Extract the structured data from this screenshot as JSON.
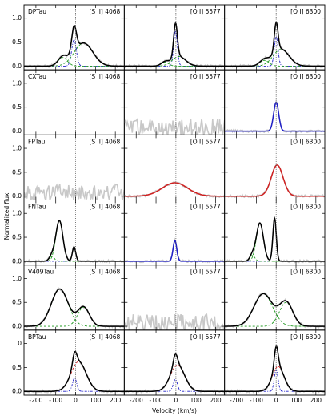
{
  "chart_data": {
    "type": "line",
    "rows": [
      "DPTau",
      "CXTau",
      "FPTau",
      "FNTau",
      "V409Tau",
      "BPTau"
    ],
    "columns": [
      "[S II] 4068",
      "[O I] 5577",
      "[O I] 6300"
    ],
    "xlabel": "Velocity (km/s)",
    "ylabel": "Normalized flux",
    "xlim": [
      -260,
      245
    ],
    "ylim": [
      -0.08,
      1.28
    ],
    "xticks": [
      -200,
      -100,
      0,
      100,
      200
    ],
    "yticks": [
      0.0,
      0.5,
      1.0
    ],
    "vertical_reference_line_x": 0,
    "colors": {
      "observed": "#c8c8c8",
      "total_fit": "#000000",
      "green_component": "#1f9a1f",
      "blue_component": "#2020c8",
      "red_component": "#d02020",
      "reference_line": "#555555"
    },
    "panels": [
      {
        "row": "DPTau",
        "line": "[S II] 4068",
        "has_data": true,
        "fit": "multi",
        "components": [
          {
            "type": "gaussian",
            "center": -8,
            "fwhm": 28,
            "amp": 0.55,
            "color": "blue"
          },
          {
            "type": "gaussian",
            "center": 40,
            "fwhm": 110,
            "amp": 0.48,
            "color": "green"
          },
          {
            "type": "gaussian",
            "center": -65,
            "fwhm": 55,
            "amp": 0.18,
            "color": "green"
          }
        ]
      },
      {
        "row": "DPTau",
        "line": "[O I] 5577",
        "has_data": true,
        "fit": "multi",
        "components": [
          {
            "type": "gaussian",
            "center": -2,
            "fwhm": 22,
            "amp": 0.72,
            "color": "blue"
          },
          {
            "type": "gaussian",
            "center": 15,
            "fwhm": 80,
            "amp": 0.2,
            "color": "green"
          },
          {
            "type": "gaussian",
            "center": -55,
            "fwhm": 45,
            "amp": 0.08,
            "color": "green"
          }
        ]
      },
      {
        "row": "DPTau",
        "line": "[O I] 6300",
        "has_data": true,
        "fit": "multi",
        "components": [
          {
            "type": "gaussian",
            "center": 0,
            "fwhm": 22,
            "amp": 0.62,
            "color": "blue"
          },
          {
            "type": "gaussian",
            "center": 25,
            "fwhm": 95,
            "amp": 0.35,
            "color": "green"
          },
          {
            "type": "gaussian",
            "center": -60,
            "fwhm": 55,
            "amp": 0.12,
            "color": "green"
          }
        ]
      },
      {
        "row": "CXTau",
        "line": "[S II] 4068",
        "has_data": false,
        "fit": "none",
        "components": []
      },
      {
        "row": "CXTau",
        "line": "[O I] 5577",
        "has_data": true,
        "fit": "none",
        "components": []
      },
      {
        "row": "CXTau",
        "line": "[O I] 6300",
        "has_data": true,
        "fit": "single",
        "components": [
          {
            "type": "gaussian",
            "center": 0,
            "fwhm": 30,
            "amp": 0.6,
            "color": "blue"
          }
        ]
      },
      {
        "row": "FPTau",
        "line": "[S II] 4068",
        "has_data": true,
        "fit": "none",
        "components": []
      },
      {
        "row": "FPTau",
        "line": "[O I] 5577",
        "has_data": true,
        "fit": "single",
        "components": [
          {
            "type": "gaussian",
            "center": -5,
            "fwhm": 150,
            "amp": 0.28,
            "color": "red"
          }
        ]
      },
      {
        "row": "FPTau",
        "line": "[O I] 6300",
        "has_data": true,
        "fit": "single",
        "components": [
          {
            "type": "gaussian",
            "center": 5,
            "fwhm": 70,
            "amp": 0.65,
            "color": "red"
          }
        ]
      },
      {
        "row": "FNTau",
        "line": "[S II] 4068",
        "has_data": true,
        "fit": "multi",
        "components": [
          {
            "type": "gaussian",
            "center": -82,
            "fwhm": 42,
            "amp": 0.85,
            "color": "green"
          },
          {
            "type": "gaussian",
            "center": -8,
            "fwhm": 20,
            "amp": 0.3,
            "color": "blue"
          },
          {
            "type": "gaussian",
            "center": -120,
            "fwhm": 30,
            "amp": 0.1,
            "color": "green"
          }
        ]
      },
      {
        "row": "FNTau",
        "line": "[O I] 5577",
        "has_data": true,
        "fit": "single",
        "components": [
          {
            "type": "gaussian",
            "center": -5,
            "fwhm": 22,
            "amp": 0.43,
            "color": "blue"
          }
        ]
      },
      {
        "row": "FNTau",
        "line": "[O I] 6300",
        "has_data": true,
        "fit": "multi",
        "components": [
          {
            "type": "gaussian",
            "center": -82,
            "fwhm": 42,
            "amp": 0.8,
            "color": "green"
          },
          {
            "type": "gaussian",
            "center": -8,
            "fwhm": 20,
            "amp": 0.9,
            "color": "blue"
          },
          {
            "type": "gaussian",
            "center": -120,
            "fwhm": 30,
            "amp": 0.12,
            "color": "green"
          }
        ]
      },
      {
        "row": "V409Tau",
        "line": "[S II] 4068",
        "has_data": true,
        "fit": "multi",
        "components": [
          {
            "type": "gaussian",
            "center": -80,
            "fwhm": 100,
            "amp": 0.78,
            "color": "green"
          },
          {
            "type": "gaussian",
            "center": 40,
            "fwhm": 70,
            "amp": 0.4,
            "color": "green"
          }
        ]
      },
      {
        "row": "V409Tau",
        "line": "[O I] 5577",
        "has_data": true,
        "fit": "none",
        "components": []
      },
      {
        "row": "V409Tau",
        "line": "[O I] 6300",
        "has_data": true,
        "fit": "multi",
        "components": [
          {
            "type": "gaussian",
            "center": -65,
            "fwhm": 110,
            "amp": 0.68,
            "color": "green"
          },
          {
            "type": "gaussian",
            "center": 50,
            "fwhm": 80,
            "amp": 0.5,
            "color": "green"
          }
        ]
      },
      {
        "row": "BPTau",
        "line": "[S II] 4068",
        "has_data": true,
        "fit": "multi",
        "components": [
          {
            "type": "gaussian",
            "center": -5,
            "fwhm": 25,
            "amp": 0.28,
            "color": "blue"
          },
          {
            "type": "gaussian",
            "center": 15,
            "fwhm": 90,
            "amp": 0.62,
            "color": "red"
          }
        ]
      },
      {
        "row": "BPTau",
        "line": "[O I] 5577",
        "has_data": true,
        "fit": "multi",
        "components": [
          {
            "type": "gaussian",
            "center": -3,
            "fwhm": 25,
            "amp": 0.25,
            "color": "blue"
          },
          {
            "type": "gaussian",
            "center": 8,
            "fwhm": 85,
            "amp": 0.55,
            "color": "red"
          }
        ]
      },
      {
        "row": "BPTau",
        "line": "[O I] 6300",
        "has_data": true,
        "fit": "multi",
        "components": [
          {
            "type": "gaussian",
            "center": 0,
            "fwhm": 22,
            "amp": 0.45,
            "color": "blue"
          },
          {
            "type": "gaussian",
            "center": 10,
            "fwhm": 70,
            "amp": 0.52,
            "color": "red"
          }
        ]
      }
    ]
  }
}
